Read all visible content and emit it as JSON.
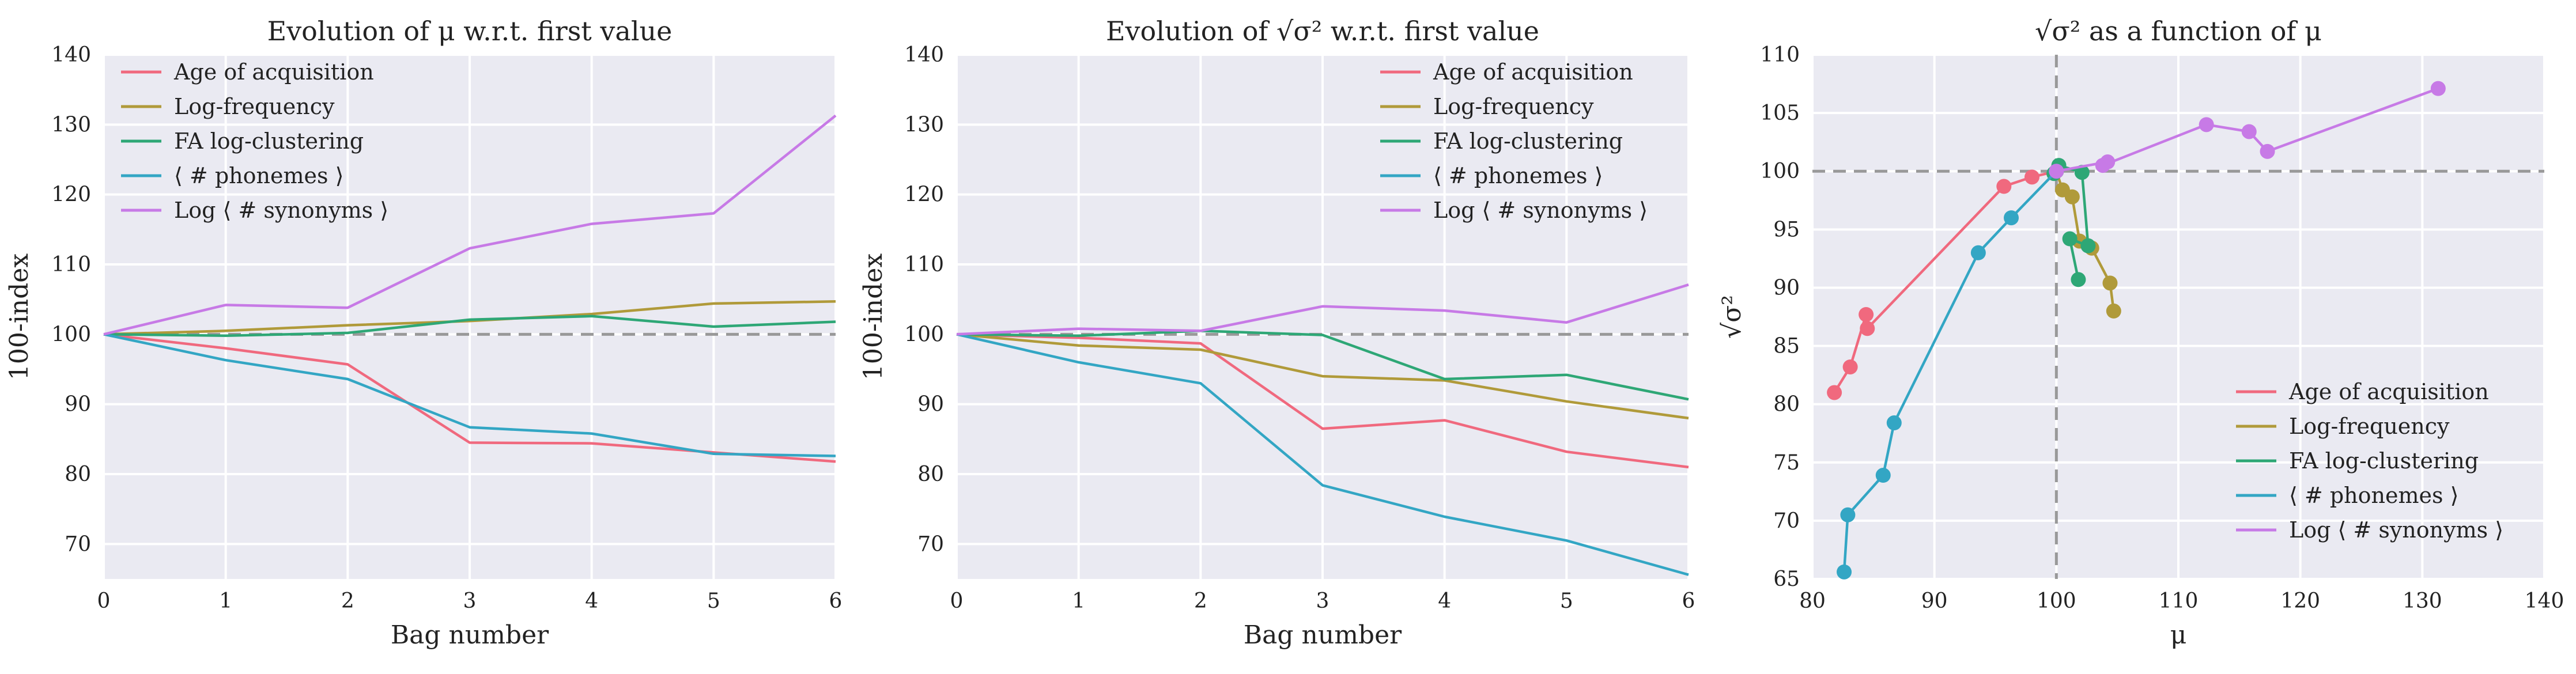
{
  "colors": {
    "background": "#eaeaf2",
    "grid": "#ffffff",
    "reference_line": "#999999",
    "series": [
      "#f0697e",
      "#b09a3a",
      "#2ea776",
      "#33a6c4",
      "#c77ae6"
    ]
  },
  "chart_data": [
    {
      "type": "line",
      "title": "Evolution of μ w.r.t. first value",
      "xlabel": "Bag number",
      "ylabel": "100-index",
      "xlim": [
        0,
        6
      ],
      "ylim": [
        65,
        140
      ],
      "xticks": [
        0,
        1,
        2,
        3,
        4,
        5,
        6
      ],
      "yticks": [
        70,
        80,
        90,
        100,
        110,
        120,
        130,
        140
      ],
      "reference_y": 100,
      "grid": true,
      "legend": "top-left",
      "x": [
        0,
        1,
        2,
        3,
        4,
        5,
        6
      ],
      "series": [
        {
          "name": "Age of acquisition",
          "values": [
            100,
            98,
            95.7,
            84.5,
            84.4,
            83.1,
            81.8
          ]
        },
        {
          "name": "Log-frequency",
          "values": [
            100,
            100.5,
            101.3,
            101.9,
            102.9,
            104.4,
            104.7
          ]
        },
        {
          "name": "FA log-clustering",
          "values": [
            100,
            99.8,
            100.2,
            102.1,
            102.6,
            101.1,
            101.8
          ]
        },
        {
          "name": "⟨ # phonemes ⟩",
          "values": [
            100,
            96.3,
            93.6,
            86.7,
            85.8,
            82.9,
            82.6
          ]
        },
        {
          "name": "Log ⟨ # synonyms ⟩",
          "values": [
            100,
            104.2,
            103.8,
            112.3,
            115.8,
            117.3,
            131.3
          ]
        }
      ]
    },
    {
      "type": "line",
      "title": "Evolution of √σ² w.r.t. first value",
      "xlabel": "Bag number",
      "ylabel": "100-index",
      "xlim": [
        0,
        6
      ],
      "ylim": [
        65,
        140
      ],
      "xticks": [
        0,
        1,
        2,
        3,
        4,
        5,
        6
      ],
      "yticks": [
        70,
        80,
        90,
        100,
        110,
        120,
        130,
        140
      ],
      "reference_y": 100,
      "grid": true,
      "legend": "top-right",
      "x": [
        0,
        1,
        2,
        3,
        4,
        5,
        6
      ],
      "series": [
        {
          "name": "Age of acquisition",
          "values": [
            100,
            99.5,
            98.7,
            86.5,
            87.7,
            83.2,
            81.0
          ]
        },
        {
          "name": "Log-frequency",
          "values": [
            100,
            98.4,
            97.8,
            94.0,
            93.4,
            90.4,
            88.0
          ]
        },
        {
          "name": "FA log-clustering",
          "values": [
            100,
            99.8,
            100.5,
            99.9,
            93.6,
            94.2,
            90.7
          ]
        },
        {
          "name": "⟨ # phonemes ⟩",
          "values": [
            100,
            96.0,
            93.0,
            78.4,
            73.9,
            70.5,
            65.6
          ]
        },
        {
          "name": "Log ⟨ # synonyms ⟩",
          "values": [
            100,
            100.8,
            100.5,
            104.0,
            103.4,
            101.7,
            107.1
          ]
        }
      ]
    },
    {
      "type": "scatter",
      "title": "√σ² as a function of μ",
      "xlabel": "μ",
      "ylabel": "√σ²",
      "xlim": [
        80,
        140
      ],
      "ylim": [
        65,
        110
      ],
      "xticks": [
        80,
        90,
        100,
        110,
        120,
        130,
        140
      ],
      "yticks": [
        65,
        70,
        75,
        80,
        85,
        90,
        95,
        100,
        105,
        110
      ],
      "reference_x": 100,
      "reference_y": 100,
      "grid": true,
      "legend": "bottom-right",
      "series": [
        {
          "name": "Age of acquisition",
          "x": [
            100,
            98,
            95.7,
            84.5,
            84.4,
            83.1,
            81.8
          ],
          "y": [
            100,
            99.5,
            98.7,
            86.5,
            87.7,
            83.2,
            81.0
          ]
        },
        {
          "name": "Log-frequency",
          "x": [
            100,
            100.5,
            101.3,
            101.9,
            102.9,
            104.4,
            104.7
          ],
          "y": [
            100,
            98.4,
            97.8,
            94.0,
            93.4,
            90.4,
            88.0
          ]
        },
        {
          "name": "FA log-clustering",
          "x": [
            100,
            99.8,
            100.2,
            102.1,
            102.6,
            101.1,
            101.8
          ],
          "y": [
            100,
            99.8,
            100.5,
            99.9,
            93.6,
            94.2,
            90.7
          ]
        },
        {
          "name": "⟨ # phonemes ⟩",
          "x": [
            100,
            96.3,
            93.6,
            86.7,
            85.8,
            82.9,
            82.6
          ],
          "y": [
            100,
            96.0,
            93.0,
            78.4,
            73.9,
            70.5,
            65.6
          ]
        },
        {
          "name": "Log ⟨ # synonyms ⟩",
          "x": [
            100,
            104.2,
            103.8,
            112.3,
            115.8,
            117.3,
            131.3
          ],
          "y": [
            100,
            100.8,
            100.5,
            104.0,
            103.4,
            101.7,
            107.1
          ]
        }
      ]
    }
  ]
}
